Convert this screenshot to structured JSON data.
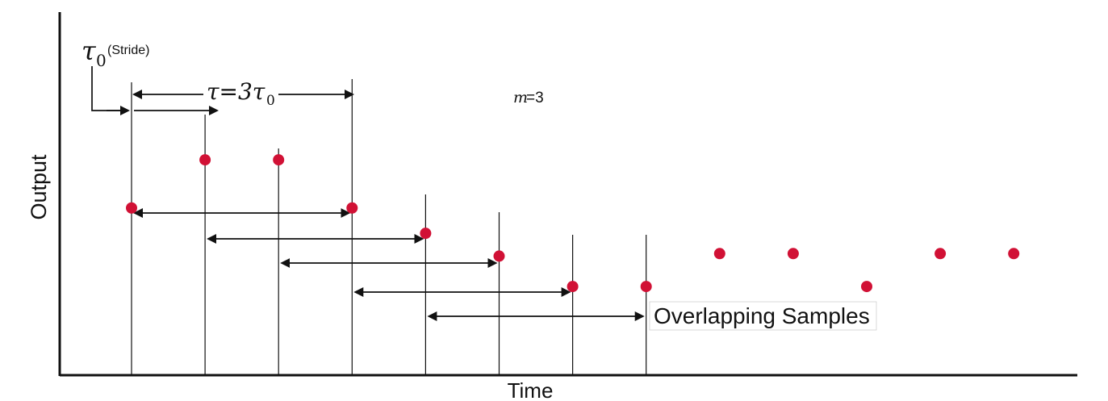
{
  "diagram": {
    "axes": {
      "x_label": "Time",
      "y_label": "Output"
    },
    "annotations": {
      "stride_symbol": "τ",
      "stride_subscript": "0",
      "stride_note": "(Stride)",
      "tau_equation_left": "τ=3τ",
      "tau_equation_subscript": "0",
      "m_symbol": "m",
      "m_value": "=3",
      "overlap_label": "Overlapping Samples"
    },
    "colors": {
      "sample_points": "#d11135",
      "lines": "#111111"
    }
  },
  "chart_data": {
    "type": "scatter",
    "x": [
      1,
      2,
      3,
      4,
      5,
      6,
      7,
      8,
      9,
      10,
      11,
      12,
      13
    ],
    "values": [
      0.66,
      0.85,
      0.85,
      0.66,
      0.56,
      0.47,
      0.35,
      0.35,
      0.48,
      0.48,
      0.35,
      0.48,
      0.48
    ],
    "xlabel": "Time",
    "ylabel": "Output",
    "window_size": 3,
    "stride_samples": 1,
    "overlap_windows": [
      {
        "start": 1,
        "end": 4
      },
      {
        "start": 2,
        "end": 5
      },
      {
        "start": 3,
        "end": 6
      },
      {
        "start": 4,
        "end": 7
      },
      {
        "start": 5,
        "end": 8
      }
    ]
  }
}
